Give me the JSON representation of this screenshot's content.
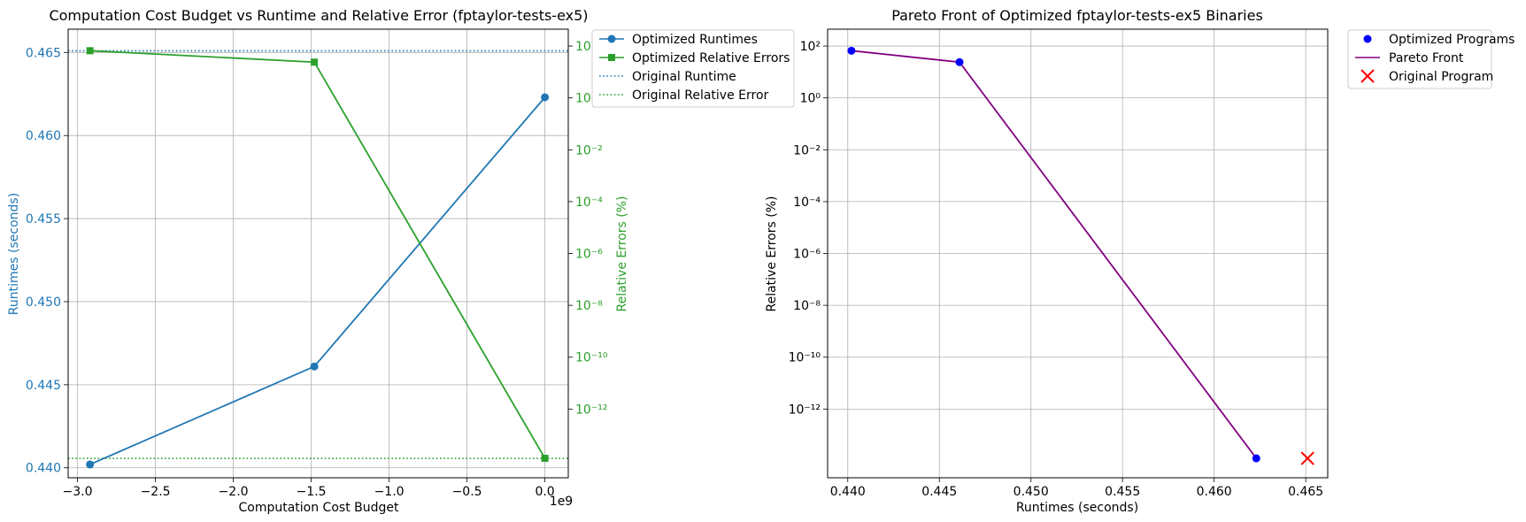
{
  "chart_data": [
    {
      "type": "line",
      "title": "Computation Cost Budget vs Runtime and Relative Error (fptaylor-tests-ex5)",
      "xlabel": "Computation Cost Budget",
      "x_offset_label": "1e9",
      "xlim": [
        -3.06,
        0.15
      ],
      "x_ticks": [
        -3.0,
        -2.5,
        -2.0,
        -1.5,
        -1.0,
        -0.5,
        0.0
      ],
      "x_tick_labels": [
        "−3.0",
        "−2.5",
        "−2.0",
        "−1.5",
        "−1.0",
        "−0.5",
        "0.0"
      ],
      "y_left": {
        "label": "Runtimes (seconds)",
        "lim": [
          0.4394,
          0.4664
        ],
        "ticks": [
          0.44,
          0.445,
          0.45,
          0.455,
          0.46,
          0.465
        ],
        "tick_labels": [
          "0.440",
          "0.445",
          "0.450",
          "0.455",
          "0.460",
          "0.465"
        ]
      },
      "y_right": {
        "label": "Relative Errors (%)",
        "scale": "log",
        "lim_exp": [
          -14.65,
          2.65
        ],
        "tick_exps": [
          -12,
          -10,
          -8,
          -6,
          -4,
          -2,
          0,
          2
        ],
        "tick_labels": [
          "10⁻¹²",
          "10⁻¹⁰",
          "10⁻⁸",
          "10⁻⁶",
          "10⁻⁴",
          "10⁻²",
          "10⁰",
          "10²"
        ]
      },
      "series": [
        {
          "name": "Optimized Runtimes",
          "axis": "left",
          "color": "#1f77b4",
          "marker": "circle",
          "x": [
            -2.92,
            -1.48,
            0.0
          ],
          "y": [
            0.4402,
            0.4461,
            0.4623
          ]
        },
        {
          "name": "Optimized Relative Errors",
          "axis": "right",
          "color": "#2ca02c",
          "marker": "square",
          "x": [
            -2.92,
            -1.48,
            0.0
          ],
          "y_exp": [
            1.82,
            1.38,
            -13.9
          ]
        }
      ],
      "reference_lines": [
        {
          "name": "Original Runtime",
          "axis": "left",
          "color": "#1f77b4",
          "y": 0.4651
        },
        {
          "name": "Original Relative Error",
          "axis": "right",
          "color": "#2ca02c",
          "y_exp": -13.9
        }
      ],
      "grid": true,
      "legend": "outside-top-right"
    },
    {
      "type": "scatter",
      "title": "Pareto Front of Optimized fptaylor-tests-ex5 Binaries",
      "xlabel": "Runtimes (seconds)",
      "ylabel": "Relative Errors (%)",
      "xlim": [
        0.4389,
        0.4662
      ],
      "x_ticks": [
        0.44,
        0.445,
        0.45,
        0.455,
        0.46,
        0.465
      ],
      "x_tick_labels": [
        "0.440",
        "0.445",
        "0.450",
        "0.455",
        "0.460",
        "0.465"
      ],
      "y_scale": "log",
      "ylim_exp": [
        -14.65,
        2.65
      ],
      "y_tick_exps": [
        -12,
        -10,
        -8,
        -6,
        -4,
        -2,
        0,
        2
      ],
      "y_tick_labels": [
        "10⁻¹²",
        "10⁻¹⁰",
        "10⁻⁸",
        "10⁻⁶",
        "10⁻⁴",
        "10⁻²",
        "10⁰",
        "10²"
      ],
      "series": [
        {
          "name": "Optimized Programs",
          "kind": "scatter",
          "color": "#0000ff",
          "x": [
            0.4402,
            0.4461,
            0.4623
          ],
          "y_exp": [
            1.82,
            1.38,
            -13.9
          ]
        },
        {
          "name": "Pareto Front",
          "kind": "line",
          "color": "#800080",
          "x": [
            0.4402,
            0.4461,
            0.4623
          ],
          "y_exp": [
            1.82,
            1.38,
            -13.9
          ]
        },
        {
          "name": "Original Program",
          "kind": "x-marker",
          "color": "#ff0000",
          "x": [
            0.4651
          ],
          "y_exp": [
            -13.9
          ]
        }
      ],
      "grid": true,
      "legend": "outside-top-right"
    }
  ]
}
